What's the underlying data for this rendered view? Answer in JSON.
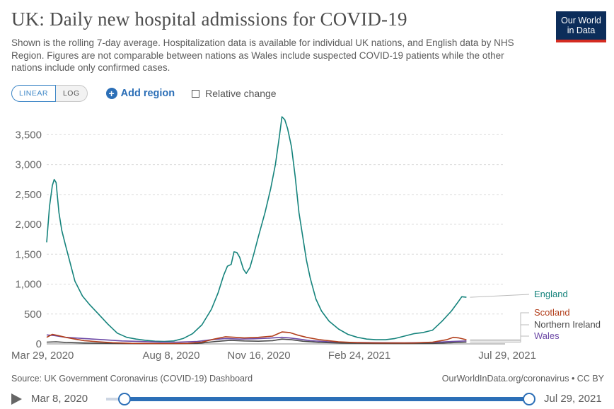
{
  "header": {
    "title": "UK: Daily new hospital admissions for COVID-19",
    "subtitle": "Shown is the rolling 7-day average. Hospitalization data is available for individual UK nations, and English data by NHS Region. Figures are not comparable between nations as Wales include suspected COVID-19 patients while the other nations include only confirmed cases.",
    "logo_line1": "Our World",
    "logo_line2": "in Data"
  },
  "controls": {
    "linear_label": "LINEAR",
    "log_label": "LOG",
    "add_region_label": "Add region",
    "relative_change_label": "Relative change"
  },
  "footer": {
    "source": "Source: UK Government Coronavirus (COVID-19) Dashboard",
    "credit": "OurWorldInData.org/coronavirus • CC BY"
  },
  "timeline": {
    "start_label": "Mar 8, 2020",
    "end_label": "Jul 29, 2021"
  },
  "chart_data": {
    "type": "line",
    "title": "UK: Daily new hospital admissions for COVID-19",
    "xlabel": "",
    "ylabel": "",
    "x_ticks": [
      "Mar 29, 2020",
      "Aug 8, 2020",
      "Nov 16, 2020",
      "Feb 24, 2021",
      "Jul 29, 2021"
    ],
    "y_ticks": [
      0,
      500,
      1000,
      1500,
      2000,
      2500,
      3000,
      3500
    ],
    "y_tick_labels": [
      "0",
      "500",
      "1,000",
      "1,500",
      "2,000",
      "2,500",
      "3,000",
      "3,500"
    ],
    "ylim": [
      0,
      3800
    ],
    "x_unit": "days since Mar 29, 2020",
    "xlim": [
      0,
      487
    ],
    "grid": true,
    "legend": "right, labels at line ends",
    "series": [
      {
        "name": "England",
        "color": "#15837c",
        "points": [
          [
            0,
            1700
          ],
          [
            3,
            2300
          ],
          [
            6,
            2650
          ],
          [
            8,
            2750
          ],
          [
            10,
            2700
          ],
          [
            13,
            2200
          ],
          [
            16,
            1900
          ],
          [
            20,
            1650
          ],
          [
            25,
            1350
          ],
          [
            30,
            1050
          ],
          [
            38,
            800
          ],
          [
            46,
            650
          ],
          [
            55,
            500
          ],
          [
            65,
            330
          ],
          [
            75,
            180
          ],
          [
            85,
            110
          ],
          [
            95,
            80
          ],
          [
            105,
            60
          ],
          [
            115,
            45
          ],
          [
            125,
            40
          ],
          [
            135,
            50
          ],
          [
            145,
            90
          ],
          [
            155,
            170
          ],
          [
            165,
            320
          ],
          [
            175,
            580
          ],
          [
            182,
            850
          ],
          [
            188,
            1150
          ],
          [
            192,
            1300
          ],
          [
            196,
            1330
          ],
          [
            199,
            1540
          ],
          [
            202,
            1530
          ],
          [
            205,
            1450
          ],
          [
            209,
            1250
          ],
          [
            212,
            1180
          ],
          [
            216,
            1280
          ],
          [
            220,
            1500
          ],
          [
            225,
            1800
          ],
          [
            232,
            2200
          ],
          [
            238,
            2600
          ],
          [
            243,
            3000
          ],
          [
            247,
            3450
          ],
          [
            250,
            3800
          ],
          [
            253,
            3750
          ],
          [
            256,
            3600
          ],
          [
            260,
            3300
          ],
          [
            264,
            2800
          ],
          [
            268,
            2200
          ],
          [
            272,
            1800
          ],
          [
            276,
            1400
          ],
          [
            280,
            1100
          ],
          [
            286,
            750
          ],
          [
            292,
            550
          ],
          [
            300,
            380
          ],
          [
            310,
            250
          ],
          [
            320,
            160
          ],
          [
            330,
            110
          ],
          [
            340,
            80
          ],
          [
            350,
            70
          ],
          [
            360,
            70
          ],
          [
            370,
            90
          ],
          [
            380,
            130
          ],
          [
            390,
            170
          ],
          [
            400,
            190
          ],
          [
            410,
            230
          ],
          [
            420,
            380
          ],
          [
            430,
            550
          ],
          [
            437,
            700
          ],
          [
            441,
            790
          ],
          [
            446,
            780
          ]
        ]
      },
      {
        "name": "Scotland",
        "color": "#b23f1c",
        "points": [
          [
            0,
            110
          ],
          [
            6,
            160
          ],
          [
            12,
            140
          ],
          [
            20,
            110
          ],
          [
            30,
            80
          ],
          [
            40,
            55
          ],
          [
            55,
            35
          ],
          [
            70,
            20
          ],
          [
            90,
            10
          ],
          [
            110,
            7
          ],
          [
            130,
            6
          ],
          [
            150,
            10
          ],
          [
            165,
            30
          ],
          [
            178,
            80
          ],
          [
            190,
            120
          ],
          [
            200,
            110
          ],
          [
            210,
            100
          ],
          [
            225,
            110
          ],
          [
            240,
            130
          ],
          [
            250,
            200
          ],
          [
            258,
            190
          ],
          [
            266,
            150
          ],
          [
            276,
            110
          ],
          [
            290,
            70
          ],
          [
            310,
            35
          ],
          [
            330,
            20
          ],
          [
            350,
            15
          ],
          [
            370,
            15
          ],
          [
            390,
            15
          ],
          [
            410,
            30
          ],
          [
            425,
            70
          ],
          [
            432,
            110
          ],
          [
            438,
            100
          ],
          [
            446,
            70
          ]
        ]
      },
      {
        "name": "Northern Ireland",
        "color": "#4a4a4a",
        "points": [
          [
            0,
            30
          ],
          [
            10,
            35
          ],
          [
            20,
            25
          ],
          [
            40,
            15
          ],
          [
            70,
            8
          ],
          [
            100,
            4
          ],
          [
            130,
            3
          ],
          [
            160,
            8
          ],
          [
            180,
            40
          ],
          [
            195,
            60
          ],
          [
            210,
            50
          ],
          [
            225,
            45
          ],
          [
            240,
            55
          ],
          [
            250,
            80
          ],
          [
            260,
            70
          ],
          [
            272,
            45
          ],
          [
            290,
            25
          ],
          [
            320,
            12
          ],
          [
            350,
            8
          ],
          [
            380,
            6
          ],
          [
            410,
            8
          ],
          [
            430,
            20
          ],
          [
            446,
            30
          ]
        ]
      },
      {
        "name": "Wales",
        "color": "#6c49a6",
        "points": [
          [
            0,
            150
          ],
          [
            8,
            140
          ],
          [
            20,
            110
          ],
          [
            40,
            90
          ],
          [
            60,
            70
          ],
          [
            80,
            50
          ],
          [
            100,
            40
          ],
          [
            120,
            30
          ],
          [
            140,
            30
          ],
          [
            160,
            40
          ],
          [
            175,
            70
          ],
          [
            190,
            90
          ],
          [
            205,
            80
          ],
          [
            220,
            85
          ],
          [
            235,
            95
          ],
          [
            250,
            110
          ],
          [
            258,
            100
          ],
          [
            268,
            80
          ],
          [
            280,
            55
          ],
          [
            300,
            35
          ],
          [
            320,
            25
          ],
          [
            350,
            20
          ],
          [
            380,
            18
          ],
          [
            410,
            25
          ],
          [
            430,
            40
          ],
          [
            446,
            50
          ]
        ]
      }
    ]
  }
}
